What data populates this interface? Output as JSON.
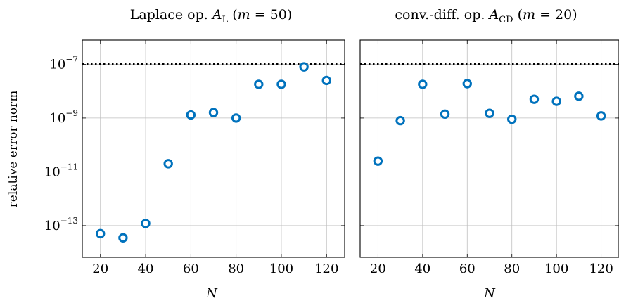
{
  "colors": {
    "marker": "#0072BD",
    "grid": "#bfbfbf",
    "threshold": "#000000"
  },
  "chart_data": [
    {
      "type": "scatter",
      "title": "Laplace op. A_L (m = 50)",
      "title_parts": {
        "prefix": "Laplace op. ",
        "op": "A",
        "sub": "L",
        "m_open": " (",
        "m_var": "m",
        "m_eq": " = 50)"
      },
      "xlabel": "N",
      "ylabel": "relative error norm",
      "y_scale": "log",
      "xlim": [
        12,
        128
      ],
      "ylim_exp": [
        -14.18,
        -6.1
      ],
      "grid": true,
      "x_ticks": [
        20,
        40,
        60,
        80,
        100,
        120
      ],
      "y_ticks": [
        {
          "exp": -7,
          "base": "10",
          "label": "−7"
        },
        {
          "exp": -9,
          "base": "10",
          "label": "−9"
        },
        {
          "exp": -11,
          "base": "10",
          "label": "−11"
        },
        {
          "exp": -13,
          "base": "10",
          "label": "−13"
        }
      ],
      "threshold": 1e-07,
      "x": [
        20,
        30,
        40,
        50,
        60,
        70,
        80,
        90,
        100,
        110,
        120
      ],
      "y": [
        5e-14,
        3.5e-14,
        1.2e-13,
        2e-11,
        1.3e-09,
        1.6e-09,
        1e-09,
        1.8e-08,
        1.8e-08,
        8e-08,
        2.5e-08
      ]
    },
    {
      "type": "scatter",
      "title": "conv.-diff. op. A_CD (m = 20)",
      "title_parts": {
        "prefix": "conv.-diff. op. ",
        "op": "A",
        "sub": "CD",
        "m_open": " (",
        "m_var": "m",
        "m_eq": " = 20)"
      },
      "xlabel": "N",
      "y_scale": "log",
      "xlim": [
        12,
        128
      ],
      "ylim_exp": [
        -14.18,
        -6.1
      ],
      "grid": true,
      "x_ticks": [
        20,
        40,
        60,
        80,
        100,
        120
      ],
      "threshold": 1e-07,
      "x": [
        20,
        30,
        40,
        50,
        60,
        70,
        80,
        90,
        100,
        110,
        120
      ],
      "y": [
        2.5e-11,
        8e-10,
        1.8e-08,
        1.4e-09,
        1.9e-08,
        1.5e-09,
        9e-10,
        5e-09,
        4.2e-09,
        6.5e-09,
        1.2e-09
      ]
    }
  ]
}
